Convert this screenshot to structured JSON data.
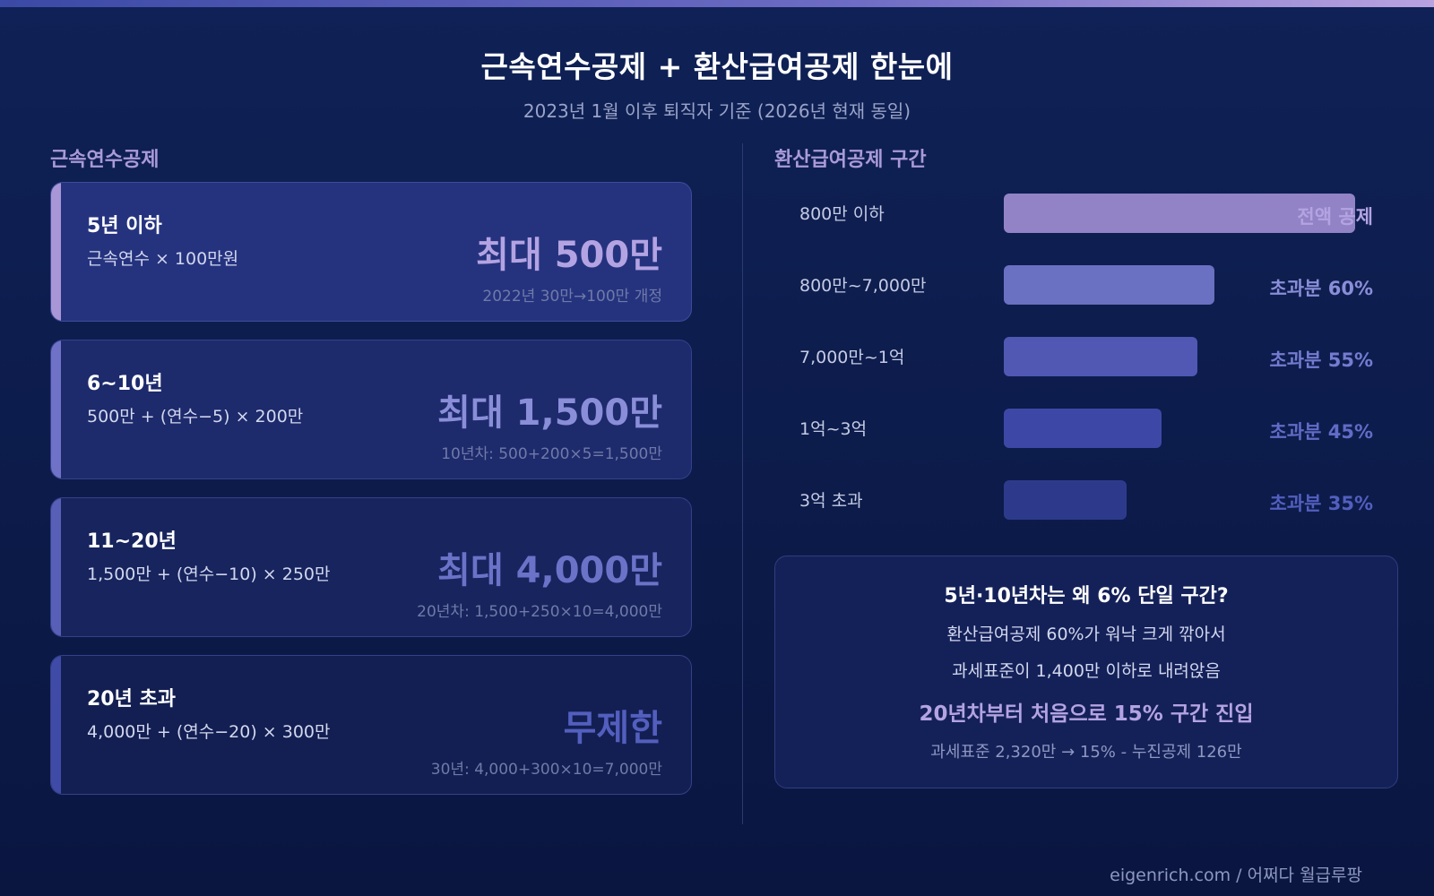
{
  "header": {
    "title": "근속연수공제 + 환산급여공제 한눈에",
    "subtitle": "2023년 1월 이후 퇴직자 기준 (2026년 현재 동일)"
  },
  "left": {
    "section_label": "근속연수공제",
    "cards": [
      {
        "title": "5년 이하",
        "formula": "근속연수 × 100만원",
        "max": "최대 500만",
        "note": "2022년 30만→100만 개정",
        "accent": "#a896d6"
      },
      {
        "title": "6~10년",
        "formula": "500만 + (연수−5) × 200만",
        "max": "최대 1,500만",
        "note": "10년차: 500+200×5=1,500만",
        "accent": "#6f72c6"
      },
      {
        "title": "11~20년",
        "formula": "1,500만 + (연수−10) × 250만",
        "max": "최대 4,000만",
        "note": "20년차: 1,500+250×10=4,000만",
        "accent": "#5760b6"
      },
      {
        "title": "20년 초과",
        "formula": "4,000만 + (연수−20) × 300만",
        "max": "무제한",
        "note": "30년: 4,000+300×10=7,000만",
        "accent": "#3f4ba6"
      }
    ]
  },
  "right": {
    "section_label": "환산급여공제 구간",
    "brackets": [
      {
        "label": "800만 이하",
        "rate": "전액 공제",
        "fill": 1.0,
        "bar_color": "#9283c6",
        "rate_color": "#b4a3e2"
      },
      {
        "label": "800만~7,000만",
        "rate": "초과분 60%",
        "fill": 0.6,
        "bar_color": "#6a70c2",
        "rate_color": "#8a8ed8"
      },
      {
        "label": "7,000만~1억",
        "rate": "초과분 55%",
        "fill": 0.55,
        "bar_color": "#5058b4",
        "rate_color": "#747cd0"
      },
      {
        "label": "1억~3억",
        "rate": "초과분 45%",
        "fill": 0.45,
        "bar_color": "#3d48a6",
        "rate_color": "#626bc6"
      },
      {
        "label": "3억 초과",
        "rate": "초과분 35%",
        "fill": 0.35,
        "bar_color": "#2d3a8c",
        "rate_color": "#535fbe"
      }
    ],
    "note": {
      "question": "5년·10년차는 왜 6% 단일 구간?",
      "line1": "환산급여공제 60%가 워낙 크게 깎아서",
      "line2": "과세표준이 1,400만 이하로 내려앉음",
      "highlight": "20년차부터 처음으로 15% 구간 진입",
      "formula": "과세표준 2,320만 → 15% - 누진공제 126만"
    }
  },
  "footer": {
    "credit": "eigenrich.com / 어쩌다 월급루팡"
  }
}
